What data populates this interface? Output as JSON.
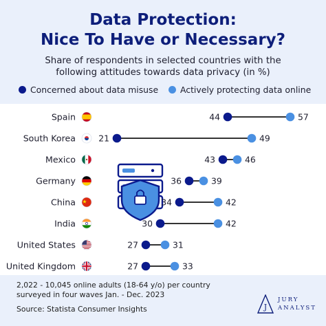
{
  "title_line1": "Data Protection:",
  "title_line2": "Nice To Have or Necessary?",
  "subtitle_line1": "Share of respondents in selected countries with the",
  "subtitle_line2": "following attitudes towards data privacy (in %)",
  "footer_line1": "2,022 - 10,045 online adults (18-64 y/o) per country",
  "footer_line2": "surveyed in four waves Jan. - Dec. 2023",
  "footer_source": "Source: Statista Consumer Insights",
  "logo": {
    "line1": "JURY",
    "line2": "ANALYST",
    "icon": "jury-analyst-logo-icon"
  },
  "colors": {
    "concerned": "#0b1a8c",
    "protecting": "#4a90e2",
    "connector": "#333333",
    "title": "#0d1e7a",
    "background": "#eaf0fb"
  },
  "chart_data": {
    "type": "dumbbell",
    "categories": [
      "Spain",
      "South Korea",
      "Mexico",
      "Germany",
      "China",
      "India",
      "United States",
      "United Kingdom"
    ],
    "flags": [
      "spain-flag-icon",
      "south-korea-flag-icon",
      "mexico-flag-icon",
      "germany-flag-icon",
      "china-flag-icon",
      "india-flag-icon",
      "united-states-flag-icon",
      "united-kingdom-flag-icon"
    ],
    "series": [
      {
        "name": "Concerned about data misuse",
        "values": [
          44,
          21,
          43,
          36,
          34,
          30,
          27,
          27
        ]
      },
      {
        "name": "Actively protecting data online",
        "values": [
          57,
          49,
          46,
          39,
          42,
          42,
          31,
          33
        ]
      }
    ],
    "legend_position": "top",
    "grid": false,
    "illustration": "server-security-shield-icon"
  }
}
